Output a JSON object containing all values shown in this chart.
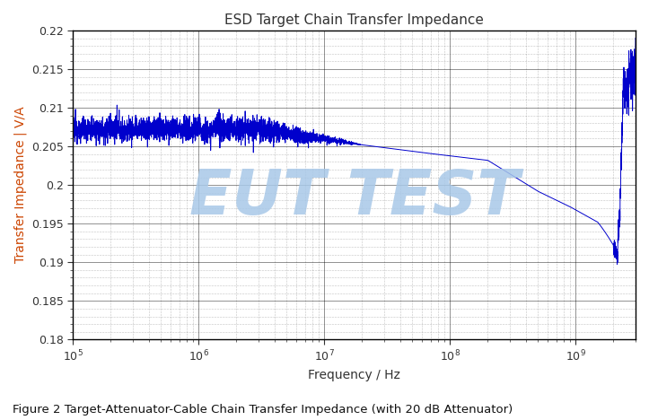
{
  "title": "ESD Target Chain Transfer Impedance",
  "xlabel": "Frequency / Hz",
  "ylabel": "Transfer Impedance | V/A",
  "caption": "Figure 2 Target-Attenuator-Cable Chain Transfer Impedance (with 20 dB Attenuator)",
  "ylim": [
    0.18,
    0.22
  ],
  "xlim": [
    100000.0,
    3000000000.0
  ],
  "yticks": [
    0.18,
    0.185,
    0.19,
    0.195,
    0.2,
    0.205,
    0.21,
    0.215,
    0.22
  ],
  "line_color": "#0000cc",
  "title_color": "#333333",
  "ylabel_color": "#cc4400",
  "xlabel_color": "#333333",
  "watermark_text": "EUT TEST",
  "watermark_color": "#a8c8e8",
  "background_color": "#ffffff",
  "grid_major_color": "#000000",
  "grid_minor_color": "#555555"
}
